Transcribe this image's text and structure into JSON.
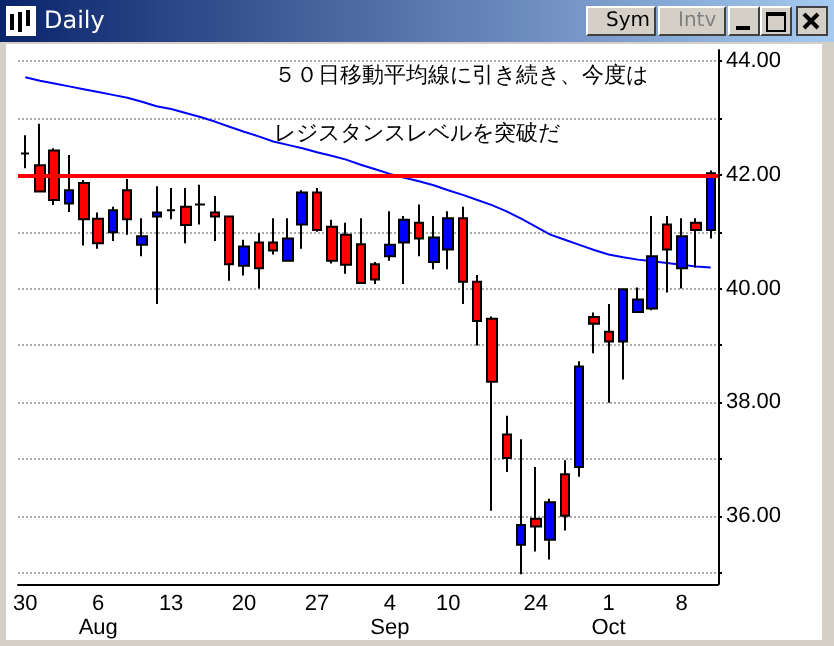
{
  "chart_data": {
    "type": "candlestick",
    "title": "Daily",
    "annotations": [
      "５０日移動平均線に引き続き、今度は",
      "レジスタンスレベルを突破だ",
      "Sym",
      "Intv"
    ],
    "categories": [
      "30",
      null,
      null,
      null,
      null,
      "6\nAug",
      null,
      null,
      null,
      null,
      "13",
      null,
      null,
      null,
      null,
      "20",
      null,
      null,
      null,
      null,
      "27",
      null,
      null,
      null,
      null,
      "4\nSep",
      null,
      null,
      null,
      "10",
      null,
      null,
      null,
      null,
      null,
      "24",
      null,
      null,
      null,
      null,
      "1\nOct",
      null,
      null,
      null,
      null,
      "8",
      null,
      null
    ],
    "series": [
      {
        "type": "line",
        "color": "#0000ff",
        "marker": "none",
        "values": [
          43.72,
          43.66,
          43.61,
          43.56,
          43.51,
          43.46,
          43.41,
          43.36,
          43.29,
          43.21,
          43.16,
          43.09,
          43.02,
          42.94,
          42.85,
          42.76,
          42.68,
          42.59,
          42.53,
          42.47,
          42.4,
          42.34,
          42.27,
          42.18,
          42.1,
          42.02,
          41.95,
          41.89,
          41.82,
          41.73,
          41.65,
          41.56,
          41.47,
          41.36,
          41.23,
          41.09,
          40.95,
          40.86,
          40.77,
          40.68,
          40.6,
          40.55,
          40.51,
          40.48,
          40.45,
          40.42,
          40.39,
          40.37
        ]
      },
      {
        "type": "candlestick",
        "ohlc": [
          [
            42.38,
            42.7,
            42.12,
            42.38
          ],
          [
            42.17,
            42.9,
            41.71,
            41.71
          ],
          [
            42.43,
            42.47,
            41.47,
            41.56
          ],
          [
            41.5,
            42.35,
            41.35,
            41.73
          ],
          [
            41.86,
            41.91,
            40.76,
            41.22
          ],
          [
            41.23,
            41.34,
            40.7,
            40.8
          ],
          [
            40.99,
            41.44,
            40.84,
            41.38
          ],
          [
            41.73,
            41.93,
            40.95,
            41.22
          ],
          [
            40.77,
            41.24,
            40.57,
            40.92
          ],
          [
            41.27,
            41.8,
            39.73,
            41.34
          ],
          [
            41.38,
            41.77,
            41.22,
            41.38
          ],
          [
            41.44,
            41.77,
            40.8,
            41.12
          ],
          [
            41.48,
            41.83,
            41.13,
            41.48
          ],
          [
            41.34,
            41.63,
            40.84,
            41.27
          ],
          [
            41.27,
            41.27,
            40.14,
            40.43
          ],
          [
            40.4,
            40.86,
            40.23,
            40.74
          ],
          [
            40.81,
            40.98,
            40.0,
            40.36
          ],
          [
            40.81,
            41.24,
            40.6,
            40.67
          ],
          [
            40.49,
            41.24,
            40.49,
            40.88
          ],
          [
            41.13,
            41.73,
            40.7,
            41.69
          ],
          [
            41.69,
            41.77,
            41.0,
            41.03
          ],
          [
            41.09,
            41.21,
            40.44,
            40.49
          ],
          [
            40.95,
            41.16,
            40.26,
            40.42
          ],
          [
            40.78,
            41.24,
            40.1,
            40.1
          ],
          [
            40.43,
            40.47,
            40.08,
            40.16
          ],
          [
            40.57,
            41.36,
            40.49,
            40.77
          ],
          [
            40.81,
            41.28,
            40.08,
            41.21
          ],
          [
            41.16,
            41.48,
            40.57,
            40.88
          ],
          [
            40.47,
            41.28,
            40.34,
            40.9
          ],
          [
            40.69,
            41.36,
            40.34,
            41.24
          ],
          [
            41.24,
            41.44,
            39.73,
            40.12
          ],
          [
            40.12,
            40.24,
            39.0,
            39.43
          ],
          [
            39.47,
            39.51,
            36.09,
            38.36
          ],
          [
            37.43,
            37.76,
            36.77,
            37.02
          ],
          [
            35.49,
            37.35,
            34.97,
            35.84
          ],
          [
            35.95,
            36.86,
            35.37,
            35.81
          ],
          [
            35.58,
            36.3,
            35.23,
            36.24
          ],
          [
            36.73,
            36.98,
            35.74,
            36.0
          ],
          [
            36.86,
            38.72,
            36.69,
            38.63
          ],
          [
            39.5,
            39.58,
            38.86,
            39.38
          ],
          [
            39.24,
            39.73,
            37.99,
            39.07
          ],
          [
            39.07,
            39.99,
            38.4,
            39.99
          ],
          [
            39.59,
            40.02,
            39.58,
            39.81
          ],
          [
            39.65,
            41.28,
            39.62,
            40.57
          ],
          [
            41.13,
            41.28,
            39.93,
            40.69
          ],
          [
            40.36,
            41.24,
            40.0,
            40.92
          ],
          [
            41.16,
            41.24,
            40.37,
            41.03
          ],
          [
            41.03,
            42.08,
            40.88,
            42.03
          ]
        ],
        "colors": [
          "#000000",
          "#ff0000",
          "#ff0000",
          "#0000ff",
          "#ff0000",
          "#ff0000",
          "#0000ff",
          "#ff0000",
          "#0000ff",
          "#0000ff",
          "#000000",
          "#ff0000",
          "#000000",
          "#ff0000",
          "#ff0000",
          "#0000ff",
          "#ff0000",
          "#ff0000",
          "#0000ff",
          "#0000ff",
          "#ff0000",
          "#ff0000",
          "#ff0000",
          "#ff0000",
          "#ff0000",
          "#0000ff",
          "#0000ff",
          "#ff0000",
          "#0000ff",
          "#0000ff",
          "#ff0000",
          "#ff0000",
          "#ff0000",
          "#ff0000",
          "#0000ff",
          "#ff0000",
          "#0000ff",
          "#ff0000",
          "#0000ff",
          "#ff0000",
          "#ff0000",
          "#0000ff",
          "#0000ff",
          "#0000ff",
          "#ff0000",
          "#0000ff",
          "#ff0000",
          "#0000ff"
        ]
      }
    ],
    "ylim": [
      34.8,
      44.2
    ],
    "yticks": [
      {
        "value": 35,
        "label": null
      },
      {
        "value": 36,
        "label": "36.00"
      },
      {
        "value": 37,
        "label": null
      },
      {
        "value": 38,
        "label": "38.00"
      },
      {
        "value": 39,
        "label": null
      },
      {
        "value": 40,
        "label": "40.00"
      },
      {
        "value": 41,
        "label": null
      },
      {
        "value": 42,
        "label": "42.00"
      },
      {
        "value": 43,
        "label": null
      },
      {
        "value": 44,
        "label": "44.00"
      }
    ],
    "ref_lines": [
      {
        "axis": "y",
        "value": 42,
        "color": "#ff0000"
      }
    ],
    "grid": "y"
  }
}
